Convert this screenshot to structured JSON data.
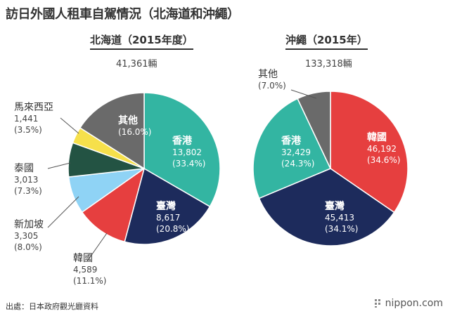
{
  "title": "訪日外國人租車自駕情況（北海道和沖繩）",
  "source": "出處：日本政府觀光廳資料",
  "brand": "nippon.com",
  "chart_data": [
    {
      "type": "pie",
      "title": "北海道（2015年度）",
      "total": "41,361輛",
      "slices": [
        {
          "name": "香港",
          "value_label": "13,802",
          "percent_label": "(33.4%)",
          "percent": 33.4,
          "color": "#33b5a2"
        },
        {
          "name": "臺灣",
          "value_label": "8,617",
          "percent_label": "(20.8%)",
          "percent": 20.8,
          "color": "#1d2b5c"
        },
        {
          "name": "韓國",
          "value_label": "4,589",
          "percent_label": "(11.1%)",
          "percent": 11.1,
          "color": "#e63f3f"
        },
        {
          "name": "新加坡",
          "value_label": "3,305",
          "percent_label": "(8.0%)",
          "percent": 8.0,
          "color": "#8fd3f5"
        },
        {
          "name": "泰國",
          "value_label": "3,013",
          "percent_label": "(7.3%)",
          "percent": 7.3,
          "color": "#235343"
        },
        {
          "name": "馬來西亞",
          "value_label": "1,441",
          "percent_label": "(3.5%)",
          "percent": 3.5,
          "color": "#f6e04b"
        },
        {
          "name": "其他",
          "value_label": "",
          "percent_label": "(16.0%)",
          "percent": 16.0,
          "color": "#6a6a6a"
        }
      ]
    },
    {
      "type": "pie",
      "title": "沖繩（2015年）",
      "total": "133,318輛",
      "slices": [
        {
          "name": "韓國",
          "value_label": "46,192",
          "percent_label": "(34.6%)",
          "percent": 34.6,
          "color": "#e63f3f"
        },
        {
          "name": "臺灣",
          "value_label": "45,413",
          "percent_label": "(34.1%)",
          "percent": 34.1,
          "color": "#1d2b5c"
        },
        {
          "name": "香港",
          "value_label": "32,429",
          "percent_label": "(24.3%)",
          "percent": 24.3,
          "color": "#33b5a2"
        },
        {
          "name": "其他",
          "value_label": "",
          "percent_label": "(7.0%)",
          "percent": 7.0,
          "color": "#6a6a6a"
        }
      ]
    }
  ]
}
